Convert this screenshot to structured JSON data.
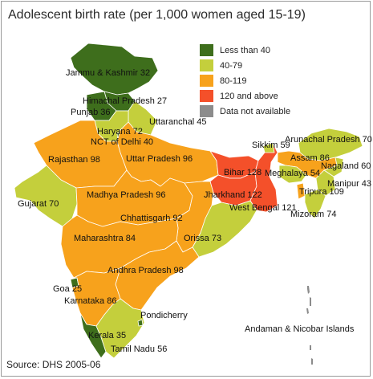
{
  "title": "Adolescent birth rate (per 1,000 women aged 15-19)",
  "source": "Source: DHS 2005-06",
  "colors": {
    "lt40": "#3e6e1c",
    "c40_79": "#c4cf3c",
    "c80_119": "#f7a21c",
    "c120": "#f4502a",
    "na": "#8c8c8c"
  },
  "legend": [
    {
      "label": "Less than 40",
      "color": "#3e6e1c"
    },
    {
      "label": "40-79",
      "color": "#c4cf3c"
    },
    {
      "label": "80-119",
      "color": "#f7a21c"
    },
    {
      "label": "120 and above",
      "color": "#f4502a"
    },
    {
      "label": "Data not available",
      "color": "#8c8c8c"
    }
  ],
  "labels": {
    "jk": "Jammu & Kashmir 32",
    "hp": "Himachal Pradesh 27",
    "punjab": "Punjab 36",
    "uttaranchal": "Uttaranchal 45",
    "haryana": "Haryana 72",
    "delhi": "NCT of Delhi 40",
    "rajasthan": "Rajasthan 98",
    "up": "Uttar Pradesh 96",
    "sikkim": "Sikkim 59",
    "arunachal": "Arunachal Pradesh 70",
    "assam": "Assam 86",
    "nagaland": "Nagaland 60",
    "bihar": "Bihar 128",
    "meghalaya": "Meghalaya 54",
    "manipur": "Manipur 43",
    "gujarat": "Gujarat 70",
    "mp": "Madhya Pradesh 96",
    "jharkhand": "Jharkhand 122",
    "tripura": "Tripura 109",
    "wb": "West Bengal 121",
    "mizoram": "Mizoram 74",
    "chhattisgarh": "Chhattisgarh 92",
    "maharashtra": "Maharashtra 84",
    "orissa": "Orissa 73",
    "ap": "Andhra Pradesh 98",
    "goa": "Goa 25",
    "karnataka": "Karnataka 86",
    "pondicherry": "Pondicherry",
    "kerala": "Kerala 35",
    "tn": "Tamil Nadu 56",
    "andaman": "Andaman & Nicobar Islands"
  }
}
